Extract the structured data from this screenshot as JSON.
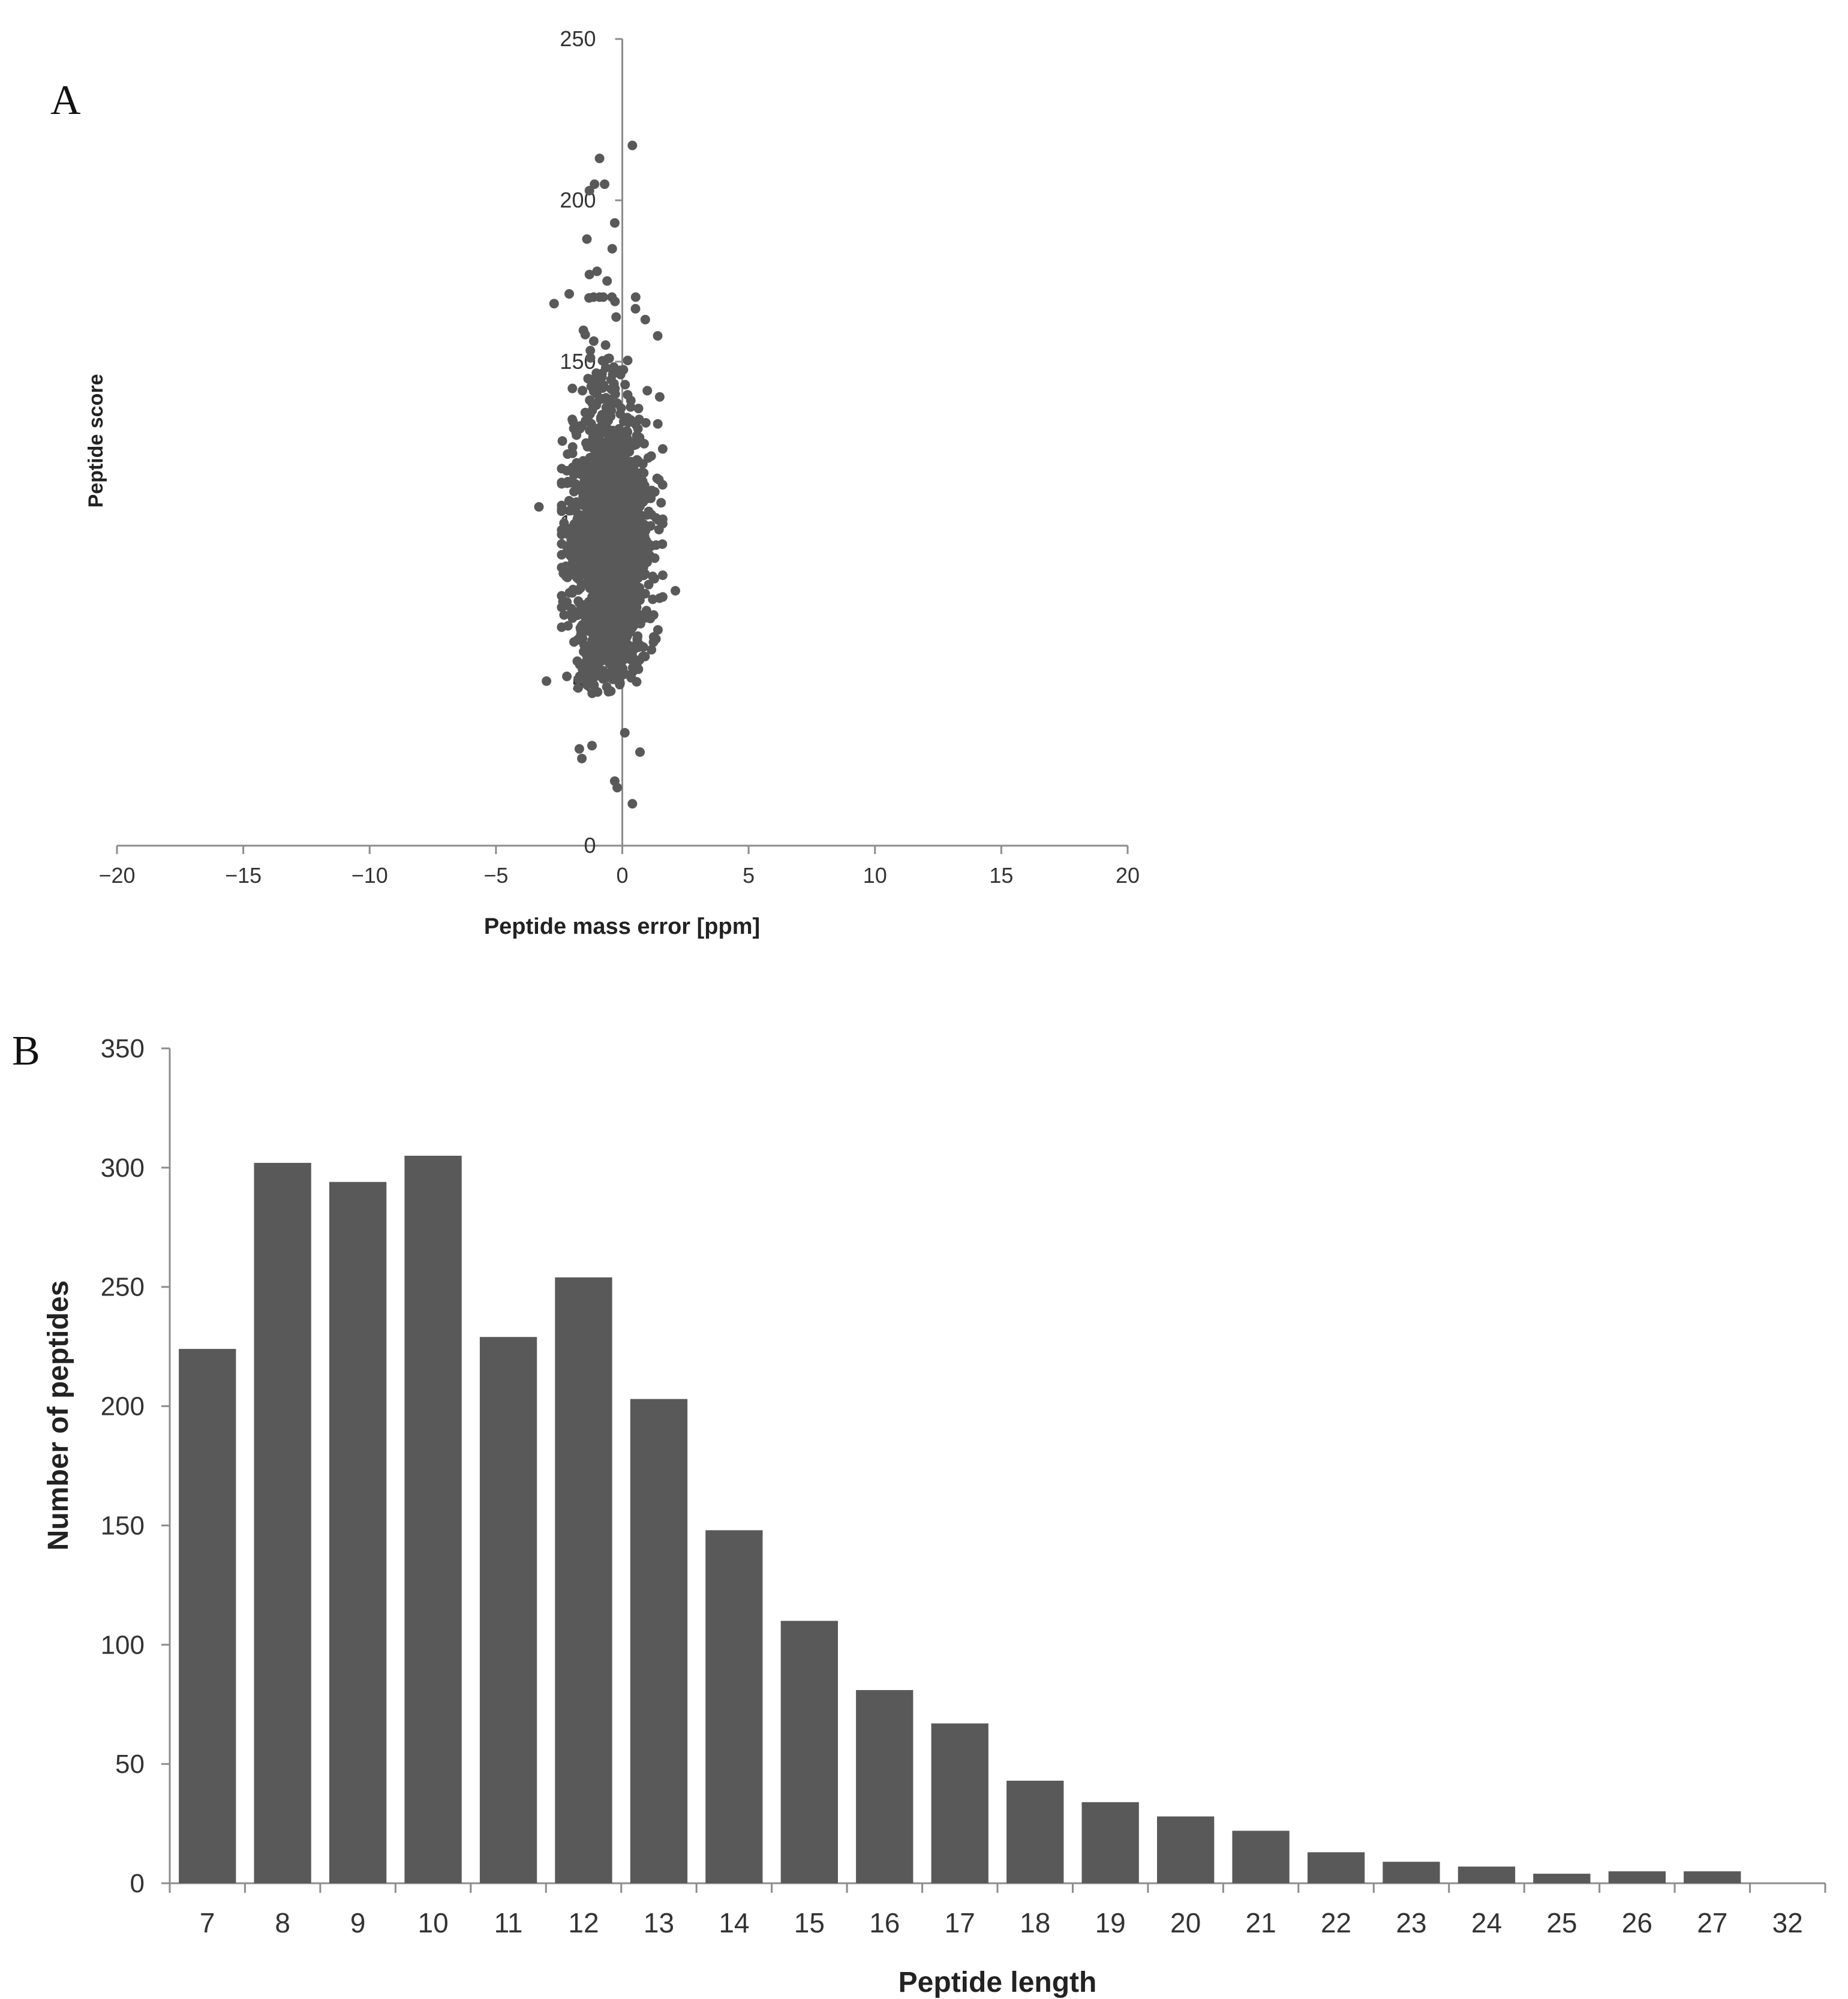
{
  "panels": {
    "a": {
      "label": "A"
    },
    "b": {
      "label": "B"
    }
  },
  "colors": {
    "marker": "#595959",
    "bar": "#595959",
    "axis": "#8c8c8c"
  },
  "chart_data": [
    {
      "id": "A",
      "type": "scatter",
      "title": "",
      "xlabel": "Peptide mass error [ppm]",
      "ylabel": "Peptide score",
      "xlim": [
        -20,
        20
      ],
      "ylim": [
        0,
        250
      ],
      "xticks": [
        -20,
        -15,
        -10,
        -5,
        0,
        5,
        10,
        15,
        20
      ],
      "yticks": [
        0,
        50,
        100,
        150,
        200,
        250
      ],
      "grid": false,
      "legend": "none",
      "distribution_summary": {
        "x_center": -0.5,
        "x_spread_sd": 0.7,
        "y_center": 85,
        "y_spread_sd": 22,
        "y_min": 40,
        "point_count": 2200
      },
      "outliers": [
        {
          "x": 0.4,
          "y": 217
        },
        {
          "x": -0.9,
          "y": 213
        },
        {
          "x": -1.1,
          "y": 205
        },
        {
          "x": -0.7,
          "y": 205
        },
        {
          "x": -1.3,
          "y": 203
        },
        {
          "x": -0.3,
          "y": 193
        },
        {
          "x": -1.4,
          "y": 188
        },
        {
          "x": -0.4,
          "y": 185
        },
        {
          "x": -1.0,
          "y": 178
        },
        {
          "x": -1.3,
          "y": 177
        },
        {
          "x": -0.6,
          "y": 175
        },
        {
          "x": -2.7,
          "y": 168
        },
        {
          "x": -2.1,
          "y": 171
        },
        {
          "x": 1.4,
          "y": 158
        },
        {
          "x": -3.3,
          "y": 105
        },
        {
          "x": 2.1,
          "y": 79
        },
        {
          "x": -3.0,
          "y": 51
        },
        {
          "x": -1.7,
          "y": 30
        },
        {
          "x": -1.2,
          "y": 31
        },
        {
          "x": 0.7,
          "y": 29
        },
        {
          "x": -1.6,
          "y": 27
        },
        {
          "x": 0.1,
          "y": 35
        },
        {
          "x": -0.3,
          "y": 20
        },
        {
          "x": -0.2,
          "y": 18
        },
        {
          "x": 0.4,
          "y": 13
        }
      ]
    },
    {
      "id": "B",
      "type": "bar",
      "title": "",
      "xlabel": "Peptide length",
      "ylabel": "Number of peptides",
      "categories": [
        "7",
        "8",
        "9",
        "10",
        "11",
        "12",
        "13",
        "14",
        "15",
        "16",
        "17",
        "18",
        "19",
        "20",
        "21",
        "22",
        "23",
        "24",
        "25",
        "26",
        "27",
        "32"
      ],
      "values": [
        224,
        302,
        294,
        305,
        229,
        254,
        203,
        148,
        110,
        81,
        67,
        43,
        34,
        28,
        22,
        13,
        9,
        7,
        4,
        5,
        5,
        0
      ],
      "ylim": [
        0,
        350
      ],
      "yticks": [
        0,
        50,
        100,
        150,
        200,
        250,
        300,
        350
      ],
      "grid": false,
      "legend": "none"
    }
  ]
}
